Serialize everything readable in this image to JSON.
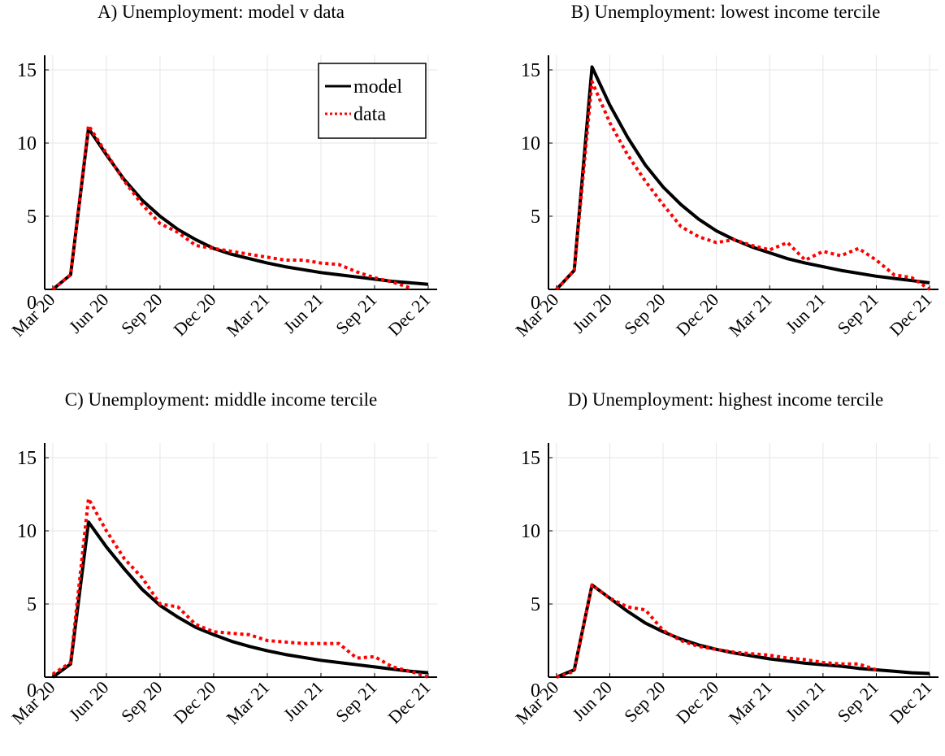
{
  "chart_data": [
    {
      "type": "line",
      "title": "A) Unemployment: model v data",
      "x": [
        0,
        1,
        2,
        3,
        4,
        5,
        6,
        7,
        8,
        9,
        10,
        11,
        12,
        13,
        14,
        15,
        16,
        17,
        18,
        19,
        20,
        21
      ],
      "series": [
        {
          "name": "model",
          "color": "#000000",
          "dash": "solid",
          "values": [
            0,
            1,
            11,
            9.2,
            7.5,
            6.1,
            5.0,
            4.1,
            3.4,
            2.8,
            2.4,
            2.1,
            1.8,
            1.55,
            1.35,
            1.15,
            1.0,
            0.85,
            0.7,
            0.55,
            0.45,
            0.35
          ]
        },
        {
          "name": "data",
          "color": "#ff0000",
          "dash": "dotted",
          "values": [
            0,
            1,
            11.2,
            9.3,
            7.4,
            5.8,
            4.5,
            3.9,
            3.0,
            2.8,
            2.6,
            2.4,
            2.2,
            2.0,
            2.0,
            1.8,
            1.7,
            1.2,
            0.8,
            0.5,
            0.1,
            null
          ]
        }
      ],
      "xlim": [
        -0.45,
        21.5
      ],
      "ylim": [
        0,
        16
      ],
      "xticks": [
        {
          "value": 0,
          "label": "Mar 20"
        },
        {
          "value": 3,
          "label": "Jun 20"
        },
        {
          "value": 6,
          "label": "Sep 20"
        },
        {
          "value": 9,
          "label": "Dec 20"
        },
        {
          "value": 12,
          "label": "Mar 21"
        },
        {
          "value": 15,
          "label": "Jun 21"
        },
        {
          "value": 18,
          "label": "Sep 21"
        },
        {
          "value": 21,
          "label": "Dec 21"
        }
      ],
      "yticks": [
        0,
        5,
        10,
        15
      ],
      "grid": true,
      "legend": "top-right"
    },
    {
      "type": "line",
      "title": "B) Unemployment: lowest income tercile",
      "x": [
        0,
        1,
        2,
        3,
        4,
        5,
        6,
        7,
        8,
        9,
        10,
        11,
        12,
        13,
        14,
        15,
        16,
        17,
        18,
        19,
        20,
        21
      ],
      "series": [
        {
          "color": "#000000",
          "dash": "solid",
          "values": [
            0,
            1.3,
            15.2,
            12.6,
            10.4,
            8.5,
            7.0,
            5.8,
            4.8,
            4.0,
            3.4,
            2.9,
            2.5,
            2.1,
            1.8,
            1.55,
            1.3,
            1.1,
            0.9,
            0.75,
            0.6,
            0.45
          ]
        },
        {
          "color": "#ff0000",
          "dash": "dotted",
          "values": [
            0,
            1.3,
            14.2,
            11.4,
            9.2,
            7.4,
            5.8,
            4.3,
            3.6,
            3.2,
            3.4,
            3.0,
            2.7,
            3.2,
            2.0,
            2.6,
            2.3,
            2.8,
            2.0,
            1.0,
            0.8,
            0
          ]
        }
      ],
      "xlim": [
        -0.45,
        21.5
      ],
      "ylim": [
        0,
        16
      ],
      "xticks": [
        {
          "value": 0,
          "label": "Mar 20"
        },
        {
          "value": 3,
          "label": "Jun 20"
        },
        {
          "value": 6,
          "label": "Sep 20"
        },
        {
          "value": 9,
          "label": "Dec 20"
        },
        {
          "value": 12,
          "label": "Mar 21"
        },
        {
          "value": 15,
          "label": "Jun 21"
        },
        {
          "value": 18,
          "label": "Sep 21"
        },
        {
          "value": 21,
          "label": "Dec 21"
        }
      ],
      "yticks": [
        0,
        5,
        10,
        15
      ],
      "grid": true
    },
    {
      "type": "line",
      "title": "C) Unemployment: middle income tercile",
      "x": [
        0,
        1,
        2,
        3,
        4,
        5,
        6,
        7,
        8,
        9,
        10,
        11,
        12,
        13,
        14,
        15,
        16,
        17,
        18,
        19,
        20,
        21
      ],
      "series": [
        {
          "color": "#000000",
          "dash": "solid",
          "values": [
            0,
            0.9,
            10.6,
            8.9,
            7.4,
            6.0,
            4.9,
            4.1,
            3.4,
            2.9,
            2.45,
            2.1,
            1.8,
            1.55,
            1.35,
            1.15,
            1.0,
            0.85,
            0.7,
            0.55,
            0.4,
            0.3
          ]
        },
        {
          "color": "#ff0000",
          "dash": "dotted",
          "values": [
            0.2,
            1.0,
            12.2,
            10.0,
            8.1,
            6.8,
            5.0,
            4.8,
            3.6,
            3.1,
            3.0,
            2.9,
            2.5,
            2.4,
            2.3,
            2.3,
            2.3,
            1.3,
            1.4,
            0.7,
            0.4,
            0
          ]
        }
      ],
      "xlim": [
        -0.45,
        21.5
      ],
      "ylim": [
        0,
        16
      ],
      "xticks": [
        {
          "value": 0,
          "label": "Mar 20"
        },
        {
          "value": 3,
          "label": "Jun 20"
        },
        {
          "value": 6,
          "label": "Sep 20"
        },
        {
          "value": 9,
          "label": "Dec 20"
        },
        {
          "value": 12,
          "label": "Mar 21"
        },
        {
          "value": 15,
          "label": "Jun 21"
        },
        {
          "value": 18,
          "label": "Sep 21"
        },
        {
          "value": 21,
          "label": "Dec 21"
        }
      ],
      "yticks": [
        0,
        5,
        10,
        15
      ],
      "grid": true
    },
    {
      "type": "line",
      "title": "D) Unemployment: highest income tercile",
      "x": [
        0,
        1,
        2,
        3,
        4,
        5,
        6,
        7,
        8,
        9,
        10,
        11,
        12,
        13,
        14,
        15,
        16,
        17,
        18,
        19,
        20,
        21
      ],
      "series": [
        {
          "color": "#000000",
          "dash": "solid",
          "values": [
            0,
            0.5,
            6.3,
            5.4,
            4.5,
            3.7,
            3.1,
            2.6,
            2.2,
            1.9,
            1.65,
            1.45,
            1.25,
            1.1,
            0.95,
            0.85,
            0.75,
            0.6,
            0.5,
            0.4,
            0.3,
            0.25
          ]
        },
        {
          "color": "#ff0000",
          "dash": "dotted",
          "values": [
            0,
            0.4,
            6.3,
            5.4,
            4.8,
            4.6,
            3.2,
            2.5,
            2.1,
            1.9,
            1.7,
            1.6,
            1.5,
            1.3,
            1.2,
            1.0,
            0.9,
            0.9,
            0.5,
            null,
            null,
            null
          ]
        }
      ],
      "xlim": [
        -0.45,
        21.5
      ],
      "ylim": [
        0,
        16
      ],
      "xticks": [
        {
          "value": 0,
          "label": "Mar 20"
        },
        {
          "value": 3,
          "label": "Jun 20"
        },
        {
          "value": 6,
          "label": "Sep 20"
        },
        {
          "value": 9,
          "label": "Dec 20"
        },
        {
          "value": 12,
          "label": "Mar 21"
        },
        {
          "value": 15,
          "label": "Jun 21"
        },
        {
          "value": 18,
          "label": "Sep 21"
        },
        {
          "value": 21,
          "label": "Dec 21"
        }
      ],
      "yticks": [
        0,
        5,
        10,
        15
      ],
      "grid": true
    }
  ]
}
